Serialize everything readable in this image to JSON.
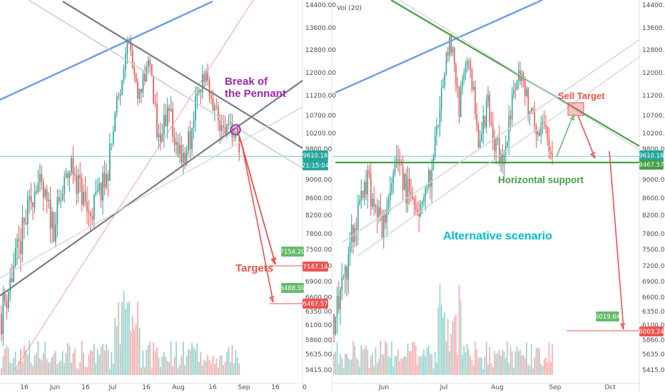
{
  "chart_data": [
    {
      "type": "candlestick",
      "panel": "left",
      "ylim": [
        5300,
        14600
      ],
      "y_ticks": [
        "14400.00",
        "13600.00",
        "12800.00",
        "12000.00",
        "11200.00",
        "10700.00",
        "10200.00",
        "9800.00",
        "9000.00",
        "8600.00",
        "8200.00",
        "7800.00",
        "7500.00",
        "7200.00",
        "6900.00",
        "6600.00",
        "6350.00",
        "6100.00",
        "5860.00",
        "5635.00",
        "5415.00"
      ],
      "x_ticks": [
        "16",
        "Jun",
        "16",
        "Jul",
        "16",
        "Aug",
        "16",
        "Sep",
        "16",
        "0"
      ],
      "price_tags": [
        {
          "value": "9610.16",
          "kind": "current-price"
        },
        {
          "value": "21:15:04",
          "kind": "countdown"
        },
        {
          "value": "7154.20",
          "kind": "target"
        },
        {
          "value": "7147.14",
          "kind": "target-axis"
        },
        {
          "value": "6488.59",
          "kind": "target"
        },
        {
          "value": "6467.57",
          "kind": "target-axis"
        }
      ],
      "annotations": [
        {
          "text": "Break of the Pennant",
          "color": "#9c27b0"
        },
        {
          "text": "Targets",
          "color": "#f0514f"
        }
      ],
      "key_prices": {
        "start": 6300,
        "peak": 13800,
        "last": 9610.16,
        "target_1": 7154.2,
        "target_2": 6488.59
      }
    },
    {
      "type": "candlestick",
      "panel": "right",
      "indicator_label": "Vol (20)",
      "ylim": [
        5300,
        14600
      ],
      "y_ticks": [
        "14400.00",
        "13600.00",
        "12800.00",
        "12000.00",
        "11200.00",
        "10700.00",
        "10200.00",
        "9800.00",
        "9000.00",
        "8600.00",
        "8200.00",
        "7800.00",
        "7500.00",
        "7200.00",
        "6900.00",
        "6600.00",
        "6350.00",
        "6100.00",
        "5860.00",
        "5635.00",
        "5415.00"
      ],
      "x_ticks": [
        "Jun",
        "Jul",
        "Aug",
        "Sep",
        "Oct"
      ],
      "price_tags": [
        {
          "value": "9610.16",
          "kind": "current-price"
        },
        {
          "value": "9467.57",
          "kind": "support"
        },
        {
          "value": "6019.64",
          "kind": "target"
        },
        {
          "value": "6003.24",
          "kind": "target-axis"
        }
      ],
      "annotations": [
        {
          "text": "Sell Target",
          "color": "#f0514f"
        },
        {
          "text": "Horizontal support",
          "color": "#43a047"
        },
        {
          "text": "Alternative scenario",
          "color": "#00bcd4"
        }
      ],
      "key_prices": {
        "start": 6300,
        "peak": 13800,
        "last": 9610.16,
        "support": 9467.57,
        "sell_target": 10900,
        "target": 6019.64
      }
    }
  ],
  "colors": {
    "up": "#26a69a",
    "down": "#ef5350",
    "trendline_grey": "#787b86",
    "trendline_blue": "#6f9ee8",
    "trendline_green": "#43a047",
    "arrow_red": "#f0514f",
    "current_price": "#26a69a",
    "break_marker": "#9c27b0"
  }
}
